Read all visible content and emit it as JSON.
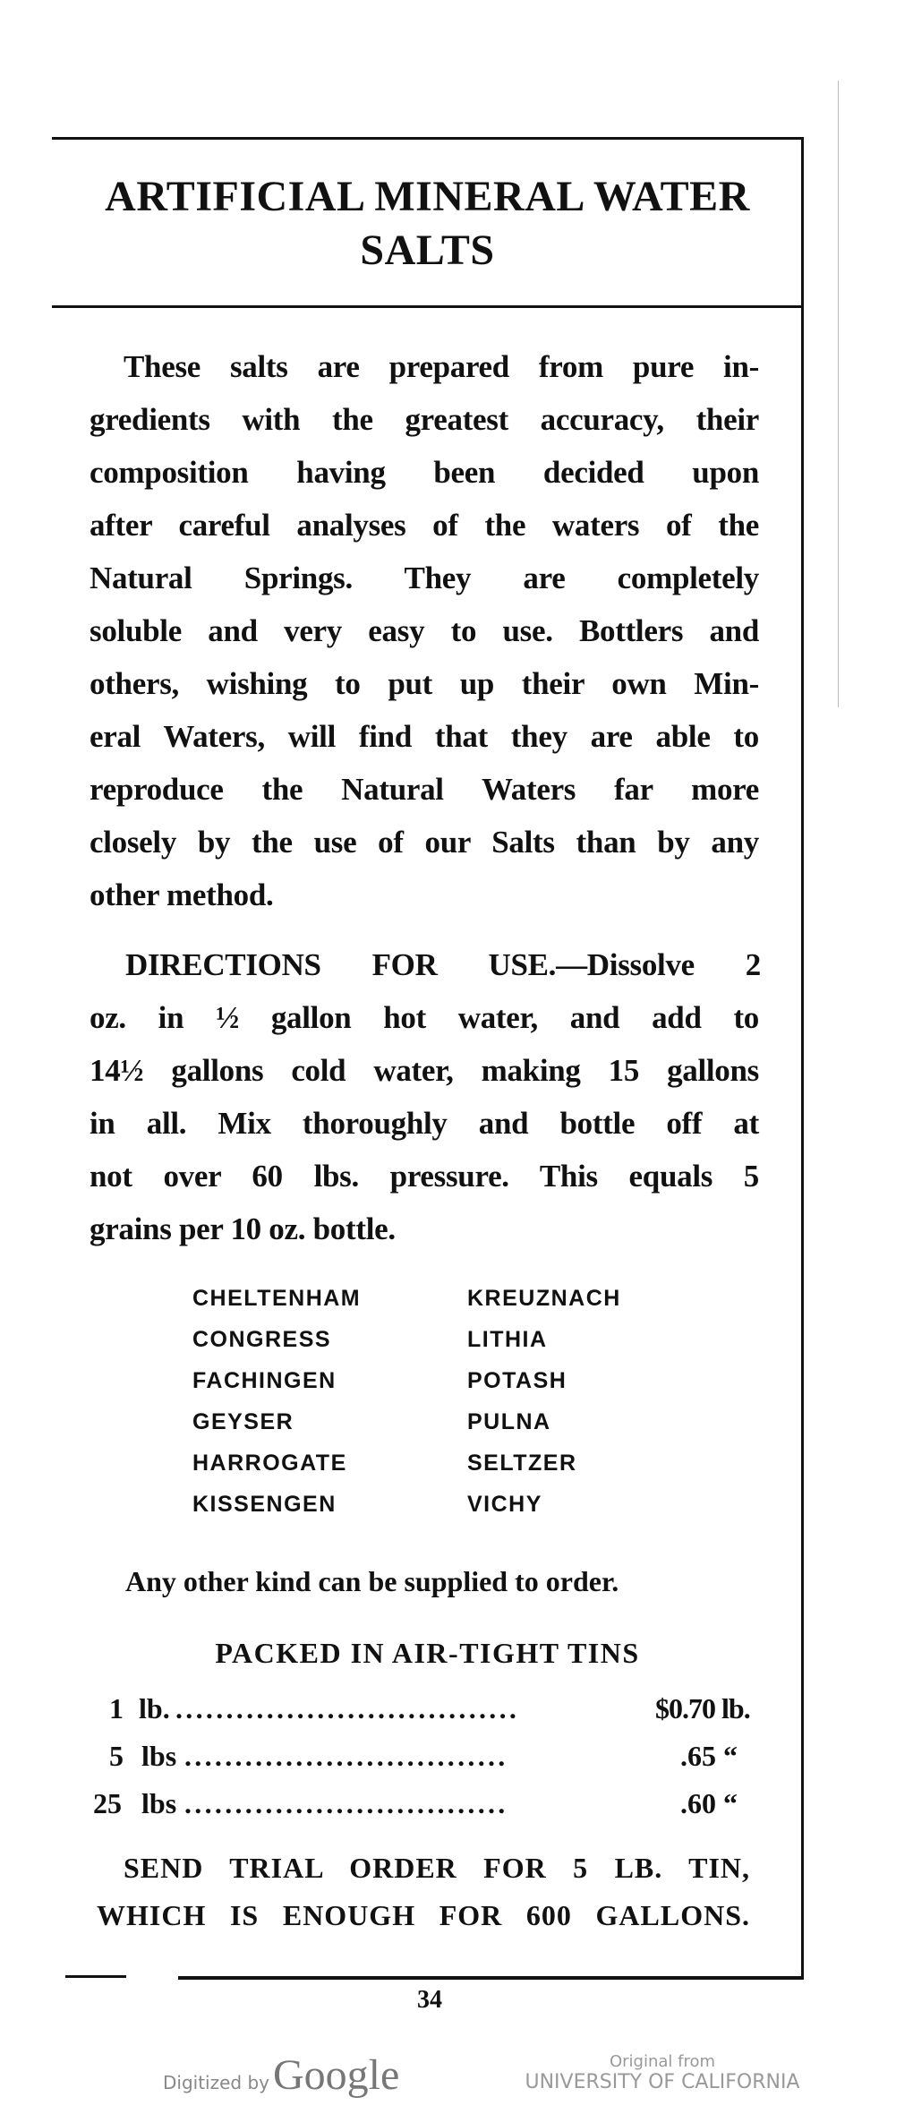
{
  "title": [
    "ARTIFICIAL MINERAL WATER",
    "SALTS"
  ],
  "intro_lines": [
    "These salts are prepared from pure in-",
    "gredients with the greatest accuracy, their",
    "composition having been decided upon",
    "after careful analyses of the waters of the",
    "Natural Springs.  They are completely",
    "soluble and very easy to use.  Bottlers and",
    "others, wishing to put up their own Min-",
    "eral Waters, will find that they are able to",
    "reproduce the Natural Waters far more",
    "closely by the use of our Salts than by any",
    "other method."
  ],
  "directions_lines": [
    "DIRECTIONS FOR USE.—Dissolve 2",
    "oz. in ½ gallon hot water, and add to",
    "14½ gallons cold water, making 15 gallons",
    "in all.  Mix thoroughly and bottle off at",
    "not over 60 lbs. pressure.  This equals 5",
    "grains per 10 oz. bottle."
  ],
  "varieties_left": [
    "CHELTENHAM",
    "CONGRESS",
    "FACHINGEN",
    "GEYSER",
    "HARROGATE",
    "KISSENGEN"
  ],
  "varieties_right": [
    "KREUZNACH",
    "LITHIA",
    "POTASH",
    "PULNA",
    "SELTZER",
    "VICHY"
  ],
  "other_kind": "Any other kind can be supplied to order.",
  "packed_heading": "PACKED IN AIR-TIGHT TINS",
  "prices": [
    {
      "qty": "1",
      "unit": "lb.",
      "dots": "..................................",
      "price": "$0.70 lb."
    },
    {
      "qty": "5",
      "unit": "lbs",
      "dots": "................................",
      "price": ".65 “"
    },
    {
      "qty": "25",
      "unit": "lbs",
      "dots": "................................",
      "price": ".60 “"
    }
  ],
  "trial_lines": [
    "SEND TRIAL ORDER FOR 5 LB. TIN,",
    "WHICH IS ENOUGH FOR 600 GALLONS."
  ],
  "page_number": "34",
  "footer": {
    "digitized_by": "Digitized by",
    "google": "Google",
    "original_from": "Original from",
    "institution": "UNIVERSITY OF CALIFORNIA"
  }
}
